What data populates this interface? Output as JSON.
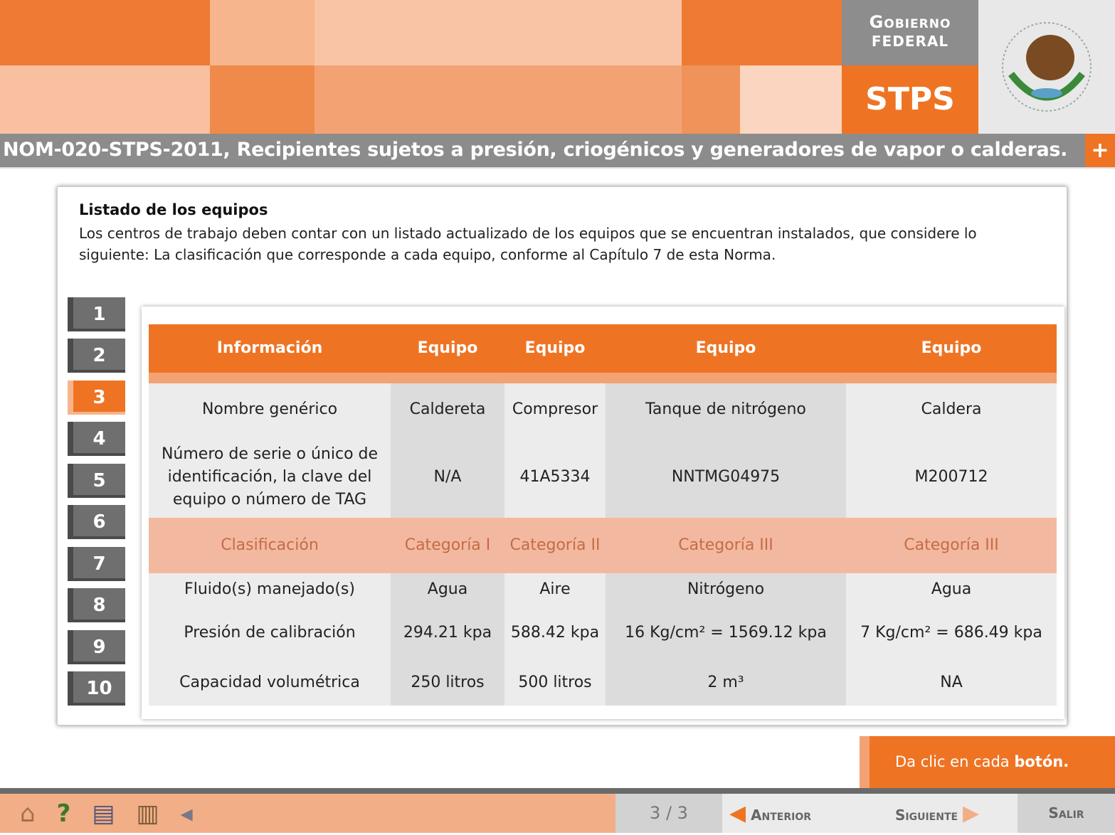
{
  "header": {
    "gov_line1": "Gobierno",
    "gov_line2": "Federal",
    "agency": "STPS",
    "seal": "Estados Unidos Mexicanos",
    "colors": {
      "orange": "#ee7424",
      "gray": "#8c8c8c"
    }
  },
  "title": "NOM-020-STPS-2011, Recipientes sujetos a presión, criogénicos y generadores de vapor o calderas.",
  "plus_label": "+",
  "content": {
    "heading": "Listado de los equipos",
    "description": "Los centros de trabajo deben contar con un listado actualizado de los equipos que se encuentran instalados, que considere lo siguiente: La clasificación que corresponde a cada equipo, conforme al Capítulo 7 de esta Norma."
  },
  "steps": [
    "1",
    "2",
    "3",
    "4",
    "5",
    "6",
    "7",
    "8",
    "9",
    "10"
  ],
  "active_step": "3",
  "table": {
    "headers": [
      "Información",
      "Equipo",
      "Equipo",
      "Equipo",
      "Equipo"
    ],
    "rows": [
      [
        "Nombre genérico",
        "Caldereta",
        "Compresor",
        "Tanque de nitrógeno",
        "Caldera"
      ],
      [
        "Número de serie o único de identificación, la clave del equipo o número de TAG",
        "N/A",
        "41A5334",
        "NNTMG04975",
        "M200712"
      ],
      [
        "Clasificación",
        "Categoría I",
        "Categoría II",
        "Categoría III",
        "Categoría III"
      ],
      [
        "Fluido(s) manejado(s)",
        "Agua",
        "Aire",
        "Nitrógeno",
        "Agua"
      ],
      [
        "Presión de calibración",
        "294.21 kpa",
        "588.42 kpa",
        "16 Kg/cm² = 1569.12 kpa",
        "7 Kg/cm² = 686.49 kpa"
      ],
      [
        "Capacidad volumétrica",
        "250 litros",
        "500 litros",
        "2 m³",
        "NA"
      ]
    ]
  },
  "instruction": {
    "text": "Da clic en cada ",
    "bold": "botón."
  },
  "footer": {
    "page": "3 / 3",
    "prev": "Anterior",
    "next": "Siguiente",
    "exit": "Salir",
    "icons": [
      "home-icon",
      "help-icon",
      "glossary-icon",
      "map-icon",
      "audio-icon"
    ]
  }
}
